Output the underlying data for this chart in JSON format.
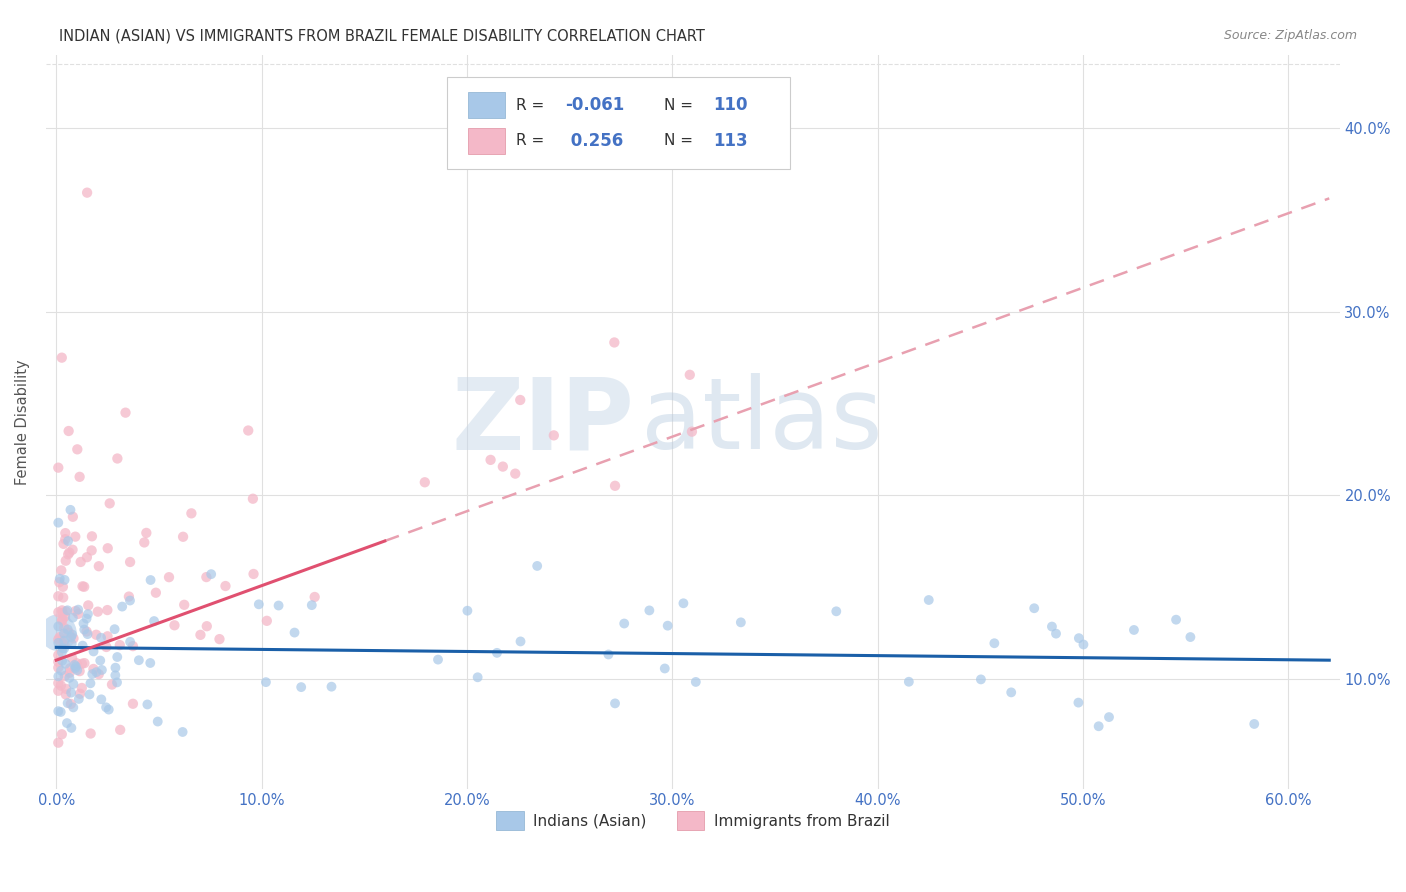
{
  "title": "INDIAN (ASIAN) VS IMMIGRANTS FROM BRAZIL FEMALE DISABILITY CORRELATION CHART",
  "source": "Source: ZipAtlas.com",
  "ylabel": "Female Disability",
  "legend_label1": "Indians (Asian)",
  "legend_label2": "Immigrants from Brazil",
  "R1": "-0.061",
  "N1": "110",
  "R2": "0.256",
  "N2": "113",
  "color1": "#a8c8e8",
  "color2": "#f4b8c8",
  "trendline1_color": "#1a5fa8",
  "trendline2_solid_color": "#e05070",
  "trendline2_dashed_color": "#e8a0b0",
  "watermark_zip": "ZIP",
  "watermark_atlas": "atlas",
  "background_color": "#ffffff",
  "grid_color": "#e0e0e0",
  "xlim_min": -0.005,
  "xlim_max": 0.625,
  "ylim_min": 0.04,
  "ylim_max": 0.44,
  "xtick_vals": [
    0.0,
    0.1,
    0.2,
    0.3,
    0.4,
    0.5,
    0.6
  ],
  "ytick_vals": [
    0.1,
    0.2,
    0.3,
    0.4
  ],
  "tick_color": "#4472c4",
  "title_color": "#333333",
  "source_color": "#888888",
  "ylabel_color": "#555555",
  "legend_box_color": "#cccccc",
  "legend_text_color": "#333333",
  "legend_val_color": "#4472c4"
}
